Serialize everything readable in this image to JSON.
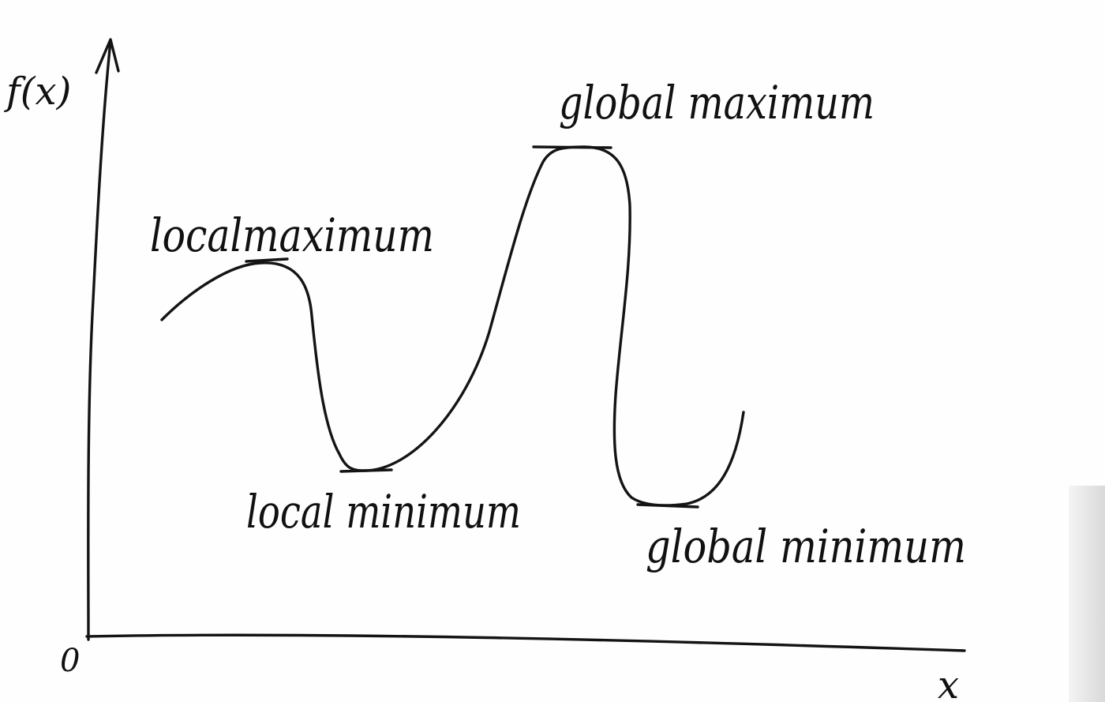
{
  "axes": {
    "y_label": "f(x)",
    "x_label": "x",
    "origin_label": "0"
  },
  "annotations": {
    "local_maximum": "localmaximum",
    "local_minimum": "local minimum",
    "global_maximum": "global maximum",
    "global_minimum": "global minimum"
  },
  "colors": {
    "ink": "#141414",
    "paper": "#fefefe"
  }
}
